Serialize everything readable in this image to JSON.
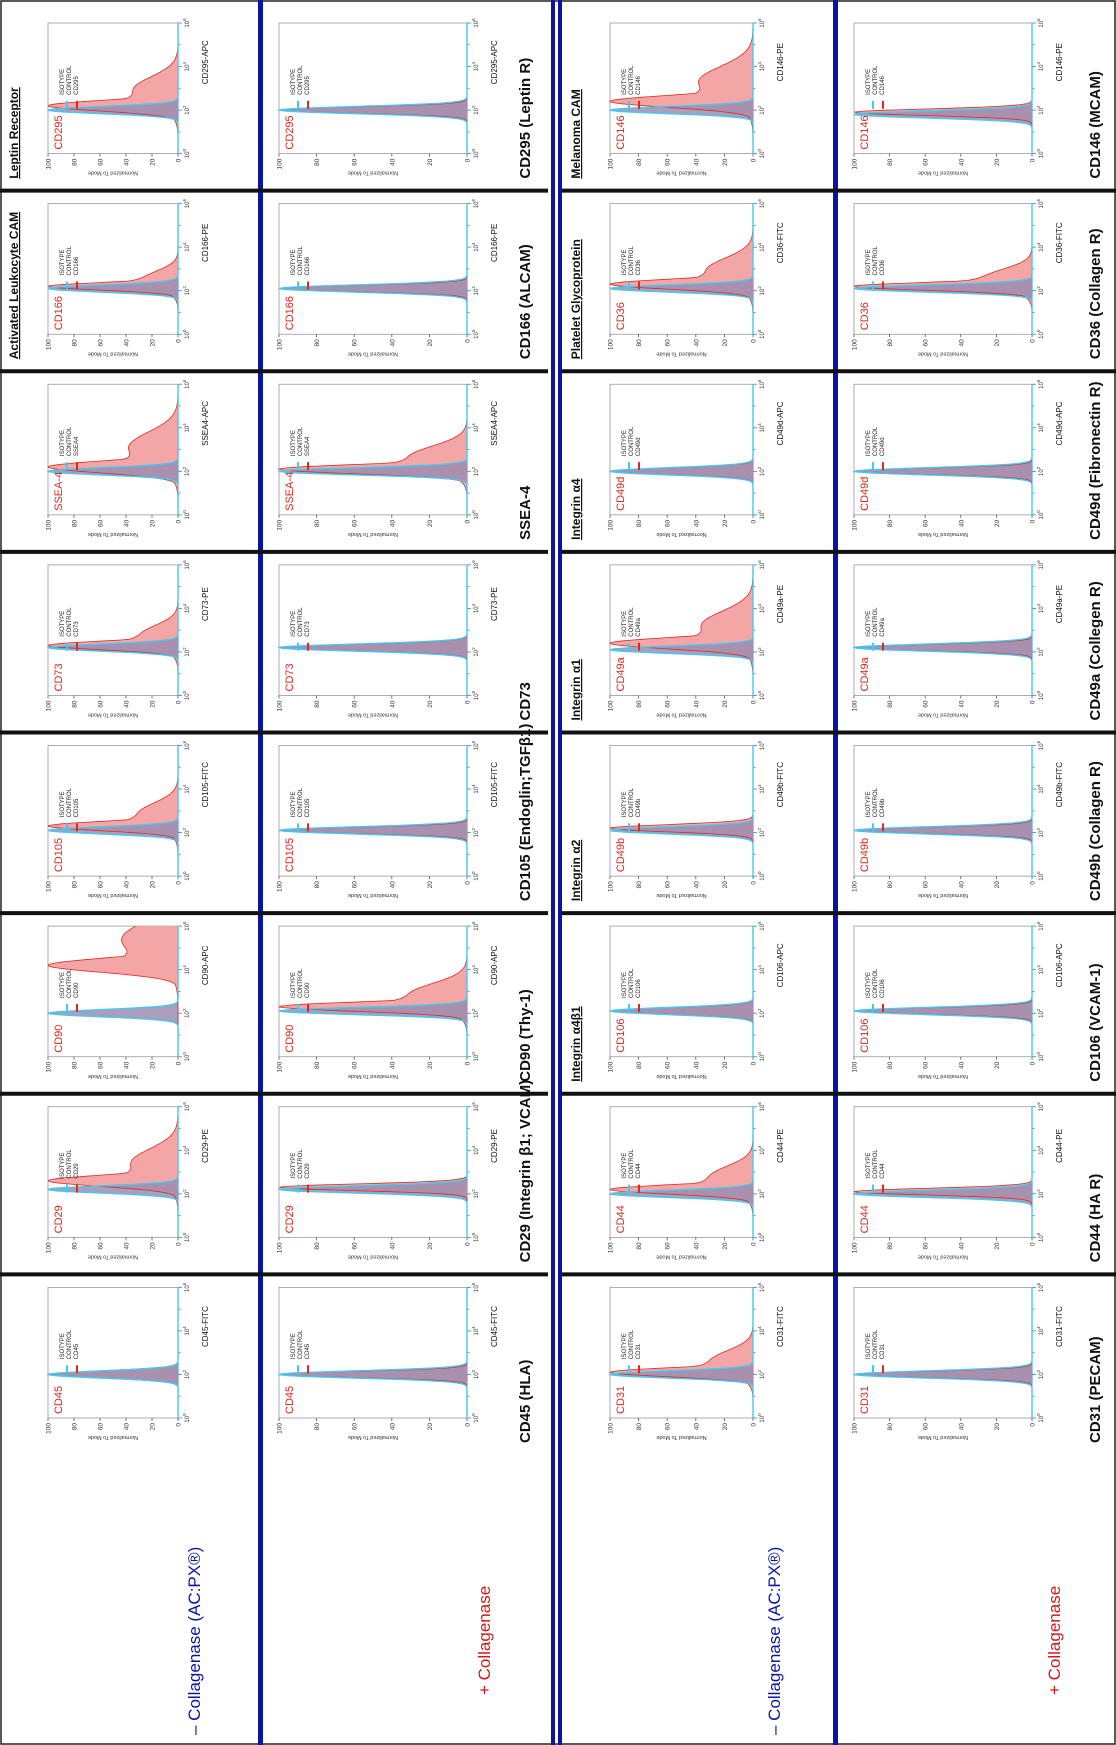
{
  "rows": [
    {
      "label_plus": "+ Collagenase",
      "label_minus": "– Collagenase (AC:PX®)",
      "markers": [
        {
          "title": "CD45 (HLA)",
          "marker": "CD45",
          "axis": "CD45-FITC",
          "func": ""
        },
        {
          "title": "CD29 (Integrin β1; VCAM)",
          "marker": "CD29",
          "axis": "CD29-PE",
          "func": ""
        },
        {
          "title": "CD90 (Thy-1)",
          "marker": "CD90",
          "axis": "CD90-APC",
          "func": ""
        },
        {
          "title": "CD105 (Endoglin;TGFβ1)",
          "marker": "CD105",
          "axis": "CD105-FITC",
          "func": ""
        },
        {
          "title": "CD73",
          "marker": "CD73",
          "axis": "CD73-PE",
          "func": ""
        },
        {
          "title": "SSEA-4",
          "marker": "SSEA-4",
          "axis": "SSEA4-APC",
          "legend_marker": "SSEA4",
          "func": ""
        },
        {
          "title": "CD166 (ALCAM)",
          "marker": "CD166",
          "axis": "CD166-PE",
          "func": "Activated Leukocyte CAM"
        },
        {
          "title": "CD295 (Leptin R)",
          "marker": "CD295",
          "axis": "CD295-APC",
          "func": "Leptin Receptor"
        }
      ]
    },
    {
      "label_plus": "+ Collagenase",
      "label_minus": "– Collagenase (AC:PX®)",
      "markers": [
        {
          "title": "CD31 (PECAM)",
          "marker": "CD31",
          "axis": "CD31-FITC",
          "func": ""
        },
        {
          "title": "CD44 (HA R)",
          "marker": "CD44",
          "axis": "CD44-PE",
          "func": ""
        },
        {
          "title": "CD106 (VCAM-1)",
          "marker": "CD106",
          "axis": "CD106-APC",
          "func": "Integrin α4β1"
        },
        {
          "title": "CD49b (Collagen R)",
          "marker": "CD49b",
          "axis": "CD49b-FITC",
          "func": "Integrin α2"
        },
        {
          "title": "CD49a (Collegen R)",
          "marker": "CD49a",
          "axis": "CD49a-PE",
          "func": "Integrin α1"
        },
        {
          "title": "CD49d (Fibronectin R)",
          "marker": "CD49d",
          "axis": "CD49d-APC",
          "func": "Integrin α4"
        },
        {
          "title": "CD36 (Collagen R)",
          "marker": "CD36",
          "axis": "CD36-FITC",
          "func": "Platelet Glycoprotein"
        },
        {
          "title": "CD146 (MCAM)",
          "marker": "CD146",
          "axis": "CD146-PE",
          "func": "Melanoma CAM"
        }
      ]
    }
  ],
  "legend": {
    "isotype_line1": "ISOTYPE",
    "isotype_line2": "CONTROL"
  },
  "y_axis_label": "Normalized To Mode",
  "colors": {
    "divider": "#0a14a0",
    "sample_fill": "#f4a6a6",
    "sample_line": "#e0281e",
    "control_line": "#46c8f0",
    "overlap": "#9c8cb0",
    "marker_text": "#e0281e"
  },
  "chart_data": {
    "type": "histogram",
    "xscale": "log",
    "xlim": [
      1,
      1000000
    ],
    "ylim": [
      0,
      100
    ],
    "yticks": [
      0,
      20,
      40,
      60,
      80,
      100
    ],
    "ylabel": "Normalized To Mode",
    "xticks": [
      "10^0",
      "10^2",
      "10^4",
      "10^6"
    ],
    "note": "",
    "panels": [
      {
        "marker": "CD45",
        "condition": "+ Collagenase",
        "control_peak": 2.0,
        "sample_peak": 2.0,
        "sample_spread": 0.12
      },
      {
        "marker": "CD45",
        "condition": "– Collagenase (AC:PX®)",
        "control_peak": 2.0,
        "sample_peak": 2.0,
        "sample_spread": 0.3
      },
      {
        "marker": "CD29",
        "condition": "+ Collagenase",
        "control_peak": 2.2,
        "sample_peak": 2.3,
        "sample_spread": 0.2
      },
      {
        "marker": "CD29",
        "condition": "– Collagenase (AC:PX®)",
        "control_peak": 2.2,
        "sample_peak": 2.6,
        "sample_spread": 0.9
      },
      {
        "marker": "CD90",
        "condition": "+ Collagenase",
        "control_peak": 2.1,
        "sample_peak": 2.3,
        "sample_spread": 0.6
      },
      {
        "marker": "CD90",
        "condition": "– Collagenase (AC:PX®)",
        "control_peak": 2.0,
        "sample_peak": 4.2,
        "sample_spread": 1.3
      },
      {
        "marker": "CD105",
        "condition": "+ Collagenase",
        "control_peak": 2.1,
        "sample_peak": 2.1,
        "sample_spread": 0.15
      },
      {
        "marker": "CD105",
        "condition": "– Collagenase (AC:PX®)",
        "control_peak": 2.1,
        "sample_peak": 2.3,
        "sample_spread": 0.6
      },
      {
        "marker": "CD73",
        "condition": "+ Collagenase",
        "control_peak": 2.2,
        "sample_peak": 2.2,
        "sample_spread": 0.2
      },
      {
        "marker": "CD73",
        "condition": "– Collagenase (AC:PX®)",
        "control_peak": 2.2,
        "sample_peak": 2.3,
        "sample_spread": 0.5
      },
      {
        "marker": "SSEA-4",
        "condition": "+ Collagenase",
        "control_peak": 2.0,
        "sample_peak": 2.1,
        "sample_spread": 0.6
      },
      {
        "marker": "SSEA-4",
        "condition": "– Collagenase (AC:PX®)",
        "control_peak": 2.0,
        "sample_peak": 2.2,
        "sample_spread": 1.0
      },
      {
        "marker": "CD166",
        "condition": "+ Collagenase",
        "control_peak": 2.1,
        "sample_peak": 2.1,
        "sample_spread": 0.15
      },
      {
        "marker": "CD166",
        "condition": "– Collagenase (AC:PX®)",
        "control_peak": 2.1,
        "sample_peak": 2.2,
        "sample_spread": 0.35
      },
      {
        "marker": "CD295",
        "condition": "+ Collagenase",
        "control_peak": 2.0,
        "sample_peak": 2.0,
        "sample_spread": 0.15
      },
      {
        "marker": "CD295",
        "condition": "– Collagenase (AC:PX®)",
        "control_peak": 2.0,
        "sample_peak": 2.2,
        "sample_spread": 0.8
      },
      {
        "marker": "CD31",
        "condition": "+ Collagenase",
        "control_peak": 2.0,
        "sample_peak": 2.0,
        "sample_spread": 0.15
      },
      {
        "marker": "CD31",
        "condition": "– Collagenase (AC:PX®)",
        "control_peak": 2.0,
        "sample_peak": 2.1,
        "sample_spread": 0.55
      },
      {
        "marker": "CD44",
        "condition": "+ Collagenase",
        "control_peak": 2.0,
        "sample_peak": 2.1,
        "sample_spread": 0.2
      },
      {
        "marker": "CD44",
        "condition": "– Collagenase (AC:PX®)",
        "control_peak": 2.0,
        "sample_peak": 2.2,
        "sample_spread": 0.6
      },
      {
        "marker": "CD106",
        "condition": "+ Collagenase",
        "control_peak": 2.1,
        "sample_peak": 2.1,
        "sample_spread": 0.15
      },
      {
        "marker": "CD106",
        "condition": "– Collagenase (AC:PX®)",
        "control_peak": 2.1,
        "sample_peak": 2.1,
        "sample_spread": 0.2
      },
      {
        "marker": "CD49b",
        "condition": "+ Collagenase",
        "control_peak": 2.1,
        "sample_peak": 2.1,
        "sample_spread": 0.15
      },
      {
        "marker": "CD49b",
        "condition": "– Collagenase (AC:PX®)",
        "control_peak": 2.1,
        "sample_peak": 2.2,
        "sample_spread": 0.3
      },
      {
        "marker": "CD49a",
        "condition": "+ Collagenase",
        "control_peak": 2.2,
        "sample_peak": 2.2,
        "sample_spread": 0.15
      },
      {
        "marker": "CD49a",
        "condition": "– Collagenase (AC:PX®)",
        "control_peak": 2.1,
        "sample_peak": 2.4,
        "sample_spread": 0.9
      },
      {
        "marker": "CD49d",
        "condition": "+ Collagenase",
        "control_peak": 2.0,
        "sample_peak": 2.0,
        "sample_spread": 0.15
      },
      {
        "marker": "CD49d",
        "condition": "– Collagenase (AC:PX®)",
        "control_peak": 2.0,
        "sample_peak": 2.0,
        "sample_spread": 0.2
      },
      {
        "marker": "CD36",
        "condition": "+ Collagenase",
        "control_peak": 2.1,
        "sample_peak": 2.2,
        "sample_spread": 0.4
      },
      {
        "marker": "CD36",
        "condition": "– Collagenase (AC:PX®)",
        "control_peak": 2.1,
        "sample_peak": 2.3,
        "sample_spread": 0.7
      },
      {
        "marker": "CD146",
        "condition": "+ Collagenase",
        "control_peak": 1.8,
        "sample_peak": 1.9,
        "sample_spread": 0.2
      },
      {
        "marker": "CD146",
        "condition": "– Collagenase (AC:PX®)",
        "control_peak": 2.0,
        "sample_peak": 2.4,
        "sample_spread": 1.0
      }
    ]
  }
}
